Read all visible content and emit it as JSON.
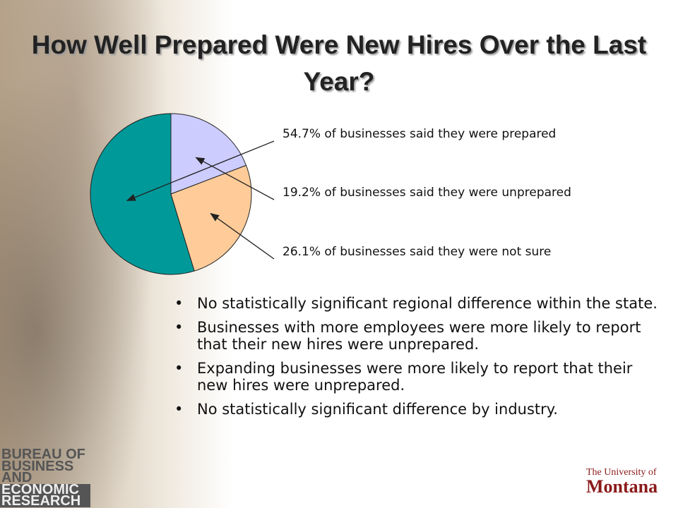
{
  "chart_data": {
    "type": "pie",
    "title": "How Well Prepared Were New Hires Over the Last Year?",
    "values": [
      54.7,
      19.2,
      26.1
    ],
    "value_labels": [
      "54.7% of businesses said they were prepared",
      "19.2% of businesses said they were unprepared",
      "26.1% of businesses said they were not sure"
    ],
    "colors": [
      "#009999",
      "#ccccff",
      "#ffcc99"
    ]
  },
  "bullets": [
    "No statistically significant regional difference within the state.",
    "Businesses with more employees were more likely to report that their new hires were unprepared.",
    "Expanding businesses were more likely to report that their new hires were unprepared.",
    "No statistically significant difference by industry."
  ],
  "logos": {
    "bureau": [
      "BUREAU OF",
      "BUSINESS",
      "AND",
      "ECONOMIC",
      "RESEARCH"
    ],
    "university": [
      "The University of",
      "Montana"
    ]
  }
}
